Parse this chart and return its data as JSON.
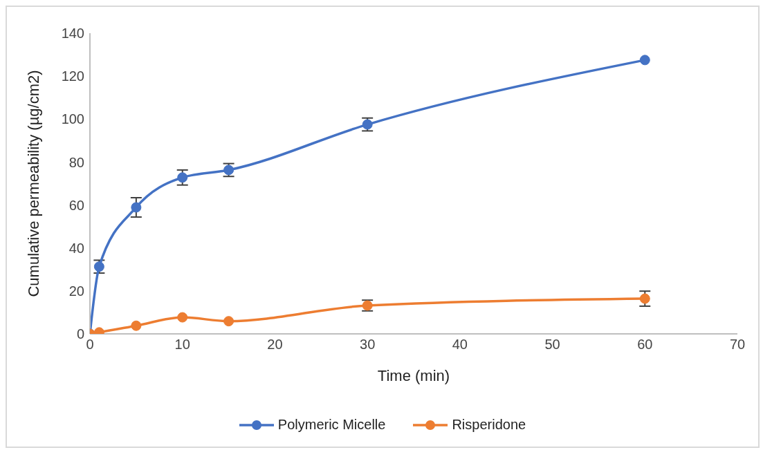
{
  "chart_data": {
    "type": "line",
    "xlabel": "Time (min)",
    "ylabel": "Cumulative permeability (µg/cm2)",
    "x": [
      0,
      1,
      5,
      10,
      15,
      30,
      60
    ],
    "series": [
      {
        "name": "Polymeric Micelle",
        "color": "#4472c4",
        "values": [
          0,
          31.3,
          58.9,
          72.8,
          76.3,
          97.5,
          127.5
        ],
        "errors": [
          null,
          3,
          4.5,
          3.5,
          3,
          3,
          null
        ]
      },
      {
        "name": "Risperidone",
        "color": "#ed7d31",
        "values": [
          0,
          0.7,
          3.8,
          7.7,
          5.9,
          13.2,
          16.4
        ],
        "errors": [
          null,
          null,
          null,
          null,
          null,
          2.5,
          3.5
        ]
      }
    ],
    "xlim": [
      0,
      70
    ],
    "xticks": [
      0,
      10,
      20,
      30,
      40,
      50,
      60,
      70
    ],
    "ylim": [
      0,
      140
    ],
    "yticks": [
      0,
      20,
      40,
      60,
      80,
      100,
      120,
      140
    ],
    "grid": false,
    "legend": "bottom",
    "marker": "circle",
    "line_style": "solid"
  }
}
